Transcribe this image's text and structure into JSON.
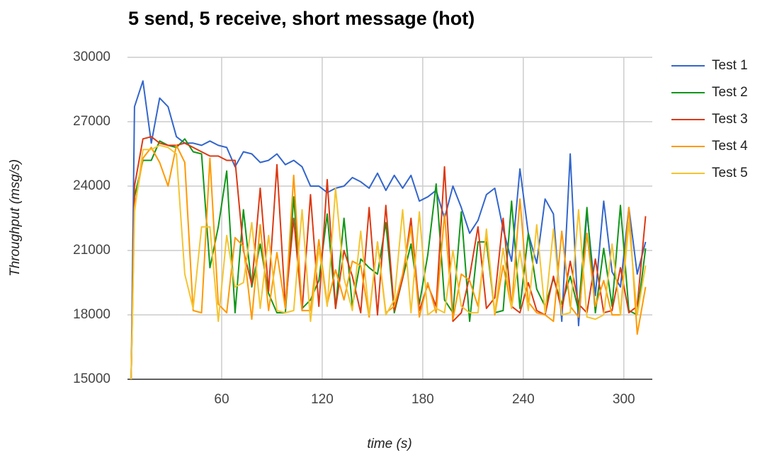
{
  "chart_data": {
    "type": "line",
    "title": "5 send, 5 receive, short message (hot)",
    "x_label": "time (s)",
    "y_label": "Throughput (msg/s)",
    "x": [
      6,
      8,
      13,
      18,
      23,
      28,
      33,
      38,
      43,
      48,
      53,
      58,
      63,
      68,
      73,
      78,
      83,
      88,
      93,
      98,
      103,
      108,
      113,
      118,
      123,
      128,
      133,
      138,
      143,
      148,
      153,
      158,
      163,
      168,
      173,
      178,
      183,
      188,
      193,
      198,
      203,
      208,
      213,
      218,
      223,
      228,
      233,
      238,
      243,
      248,
      253,
      258,
      263,
      268,
      273,
      278,
      283,
      288,
      293,
      298,
      303,
      308,
      313
    ],
    "series": [
      {
        "name": "Test 1",
        "color": "#3366cc",
        "values": [
          15000,
          27700,
          28900,
          26000,
          28100,
          27700,
          26300,
          26000,
          26000,
          25900,
          26100,
          25900,
          25800,
          24900,
          25600,
          25500,
          25100,
          25200,
          25500,
          25000,
          25200,
          24900,
          24000,
          24000,
          23700,
          23900,
          24000,
          24400,
          24200,
          23900,
          24600,
          23800,
          24500,
          23900,
          24500,
          23300,
          23500,
          23800,
          22500,
          24000,
          23000,
          21800,
          22400,
          23600,
          23900,
          22000,
          20500,
          24800,
          21800,
          20400,
          23400,
          22700,
          17700,
          25500,
          17500,
          22800,
          18900,
          23300,
          20000,
          19300,
          23000,
          19900,
          21400
        ]
      },
      {
        "name": "Test 2",
        "color": "#109618",
        "values": [
          15000,
          23500,
          25200,
          25200,
          26100,
          25900,
          25800,
          26200,
          25600,
          25500,
          20200,
          22100,
          24700,
          18100,
          22900,
          19300,
          21300,
          19000,
          18100,
          18100,
          23500,
          18300,
          18700,
          19600,
          22700,
          18300,
          22500,
          18400,
          20600,
          20200,
          19900,
          22300,
          18100,
          19700,
          21300,
          18500,
          20800,
          24100,
          18700,
          18100,
          22800,
          17700,
          21400,
          21400,
          18100,
          18200,
          23300,
          18300,
          21800,
          19200,
          18400,
          19700,
          18500,
          19800,
          18200,
          23000,
          18100,
          21100,
          18400,
          23100,
          18200,
          18000,
          21100
        ]
      },
      {
        "name": "Test 3",
        "color": "#dc3912",
        "values": [
          15000,
          24000,
          26200,
          26300,
          26000,
          25900,
          25900,
          26000,
          25800,
          25600,
          25400,
          25400,
          25200,
          25200,
          21000,
          19400,
          23900,
          19100,
          25000,
          18400,
          22500,
          18200,
          23600,
          18400,
          24300,
          18300,
          21000,
          19800,
          18100,
          23000,
          18000,
          23100,
          18200,
          19700,
          22500,
          18200,
          19400,
          18400,
          24900,
          17700,
          18100,
          19800,
          22100,
          18300,
          18800,
          22500,
          18400,
          18100,
          19500,
          18200,
          18000,
          19800,
          18200,
          20500,
          18500,
          18100,
          20600,
          18100,
          18200,
          20200,
          18100,
          18400,
          22600
        ]
      },
      {
        "name": "Test 4",
        "color": "#ff9900",
        "values": [
          15000,
          23000,
          25300,
          25800,
          25100,
          24000,
          25900,
          25100,
          18200,
          18100,
          25300,
          18500,
          18100,
          21600,
          21200,
          17800,
          22200,
          18200,
          20900,
          18300,
          24500,
          18200,
          18200,
          21500,
          18500,
          20100,
          18700,
          20500,
          20300,
          17900,
          21400,
          18100,
          18400,
          19900,
          22100,
          17900,
          19500,
          18100,
          22700,
          17800,
          19900,
          19600,
          18400,
          21800,
          18000,
          20300,
          18300,
          23400,
          18600,
          18100,
          18000,
          17700,
          21900,
          18400,
          17900,
          21800,
          18400,
          19600,
          18000,
          18000,
          23000,
          17100,
          19300
        ]
      },
      {
        "name": "Test 5",
        "color": "#f4c430",
        "values": [
          15000,
          22800,
          25700,
          25700,
          25900,
          25800,
          25500,
          19900,
          18300,
          22100,
          22100,
          17700,
          21700,
          19300,
          19500,
          22300,
          18300,
          21700,
          18200,
          18100,
          18200,
          22900,
          17700,
          21100,
          18400,
          23900,
          19700,
          18200,
          21900,
          18000,
          21400,
          18000,
          18700,
          22900,
          18100,
          22800,
          18000,
          18300,
          18100,
          21000,
          18400,
          18100,
          18100,
          22000,
          18100,
          21100,
          18300,
          21000,
          18200,
          22200,
          18100,
          22000,
          18000,
          18100,
          22900,
          17900,
          17800,
          18000,
          21300,
          18000,
          22300,
          18000,
          20300
        ]
      }
    ],
    "xlim": [
      3.8,
      317
    ],
    "xticks": [
      60,
      120,
      180,
      240,
      300
    ],
    "ylim": [
      15000,
      30000
    ],
    "yticks": [
      15000,
      18000,
      21000,
      24000,
      27000,
      30000
    ],
    "grid": true,
    "legend": "right"
  }
}
